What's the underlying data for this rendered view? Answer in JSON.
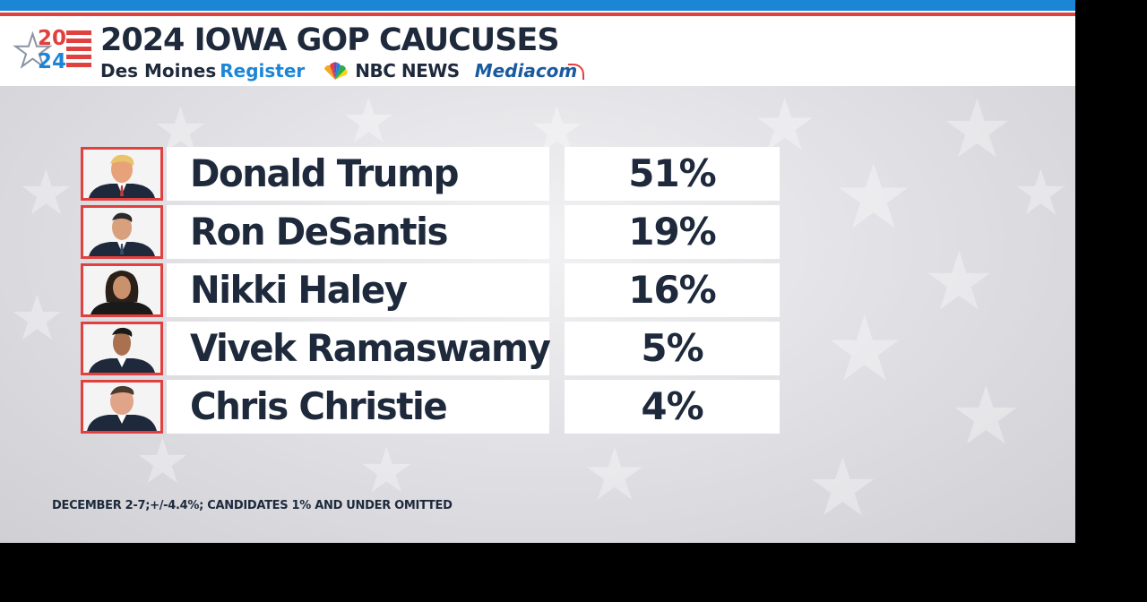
{
  "header": {
    "logo_year_top": "20",
    "logo_year_bottom": "24",
    "title": "2024 IOWA GOP CAUCUSES",
    "sponsor_des_moines": "Des Moines",
    "sponsor_register": "Register",
    "sponsor_nbc": "NBC NEWS",
    "sponsor_mediacom": "Mediacom"
  },
  "candidates": [
    {
      "name": "Donald Trump",
      "percent": "51%"
    },
    {
      "name": "Ron DeSantis",
      "percent": "19%"
    },
    {
      "name": "Nikki Haley",
      "percent": "16%"
    },
    {
      "name": "Vivek Ramaswamy",
      "percent": "5%"
    },
    {
      "name": "Chris Christie",
      "percent": "4%"
    }
  ],
  "footnote": "DECEMBER 2-7;+/-4.4%; CANDIDATES 1% AND UNDER OMITTED",
  "colors": {
    "brand_red": "#e0413f",
    "brand_blue": "#1c86d6",
    "text_navy": "#1e2a3c"
  }
}
